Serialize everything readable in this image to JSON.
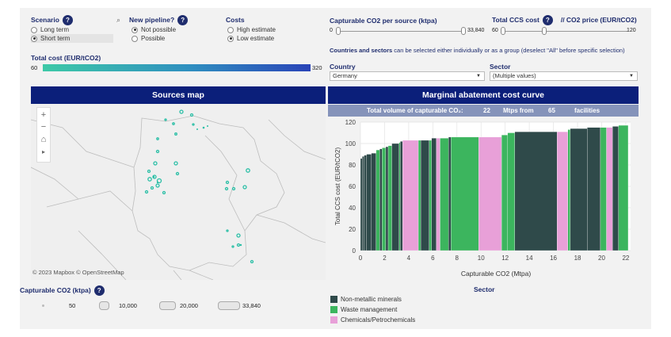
{
  "filters": {
    "scenario": {
      "title": "Scenario",
      "help": "?",
      "options": [
        "Long term",
        "Short term"
      ],
      "selected": 1
    },
    "pipeline": {
      "title": "New pipeline?",
      "help": "?",
      "options": [
        "Not possible",
        "Possible"
      ],
      "selected": 0
    },
    "costs": {
      "title": "Costs",
      "options": [
        "High estimate",
        "Low estimate"
      ],
      "selected": 1
    },
    "search_icon": "search-icon"
  },
  "total_cost": {
    "label": "Total cost (EUR/tCO2)",
    "min": "60",
    "max": "320"
  },
  "capturable_slider": {
    "label": "Capturable CO2 per source (ktpa)",
    "min": "0",
    "max": "33,840"
  },
  "ccs_slider": {
    "label": "Total CCS cost",
    "help": "?",
    "label2": "// CO2 price (EUR/tCO2)",
    "min": "60",
    "max": "120"
  },
  "selection_note": {
    "bold": "Countries and sectors",
    "rest": " can be selected either individually or as a group (deselect \"All\" before specific selection)"
  },
  "country": {
    "label": "Country",
    "value": "Germany"
  },
  "sector_filter": {
    "label": "Sector",
    "value": "(Multiple values)"
  },
  "sources_map": {
    "title": "Sources map",
    "attribution": "© 2023 Mapbox  © OpenStreetMap",
    "controls": [
      "+",
      "−",
      "⌂",
      "▸"
    ]
  },
  "size_legend": {
    "title": "Capturable CO2 (ktpa)",
    "help": "?",
    "values": [
      "50",
      "10,000",
      "20,000",
      "33,840"
    ]
  },
  "macc": {
    "title": "Marginal abatement cost curve",
    "summary": {
      "label": "Total volume of capturable CO₂:",
      "volume": "22",
      "mid": "Mtps from",
      "facilities": "65",
      "end": "facilities"
    }
  },
  "chart_data": {
    "type": "bar",
    "xlabel": "Capturable CO2 (Mtpa)",
    "ylabel": "Total CCS cost (EUR/tCO2)",
    "xlim": [
      0,
      22.4
    ],
    "ylim": [
      0,
      120
    ],
    "xticks": [
      0,
      2,
      4,
      6,
      8,
      10,
      12,
      14,
      16,
      18,
      20,
      22
    ],
    "yticks": [
      0,
      20,
      40,
      60,
      80,
      100,
      120
    ],
    "colors": {
      "Non-metallic minerals": "#2f4a4a",
      "Waste management": "#3cb55e",
      "Chemicals/Petrochemicals": "#e8a0d8"
    },
    "bars": [
      {
        "x0": 0,
        "x1": 0.15,
        "y": 86,
        "sector": "Non-metallic minerals"
      },
      {
        "x0": 0.15,
        "x1": 0.3,
        "y": 88,
        "sector": "Non-metallic minerals"
      },
      {
        "x0": 0.3,
        "x1": 0.5,
        "y": 89,
        "sector": "Non-metallic minerals"
      },
      {
        "x0": 0.5,
        "x1": 0.9,
        "y": 90,
        "sector": "Non-metallic minerals"
      },
      {
        "x0": 0.9,
        "x1": 1.3,
        "y": 91,
        "sector": "Non-metallic minerals"
      },
      {
        "x0": 1.3,
        "x1": 1.6,
        "y": 94,
        "sector": "Waste management"
      },
      {
        "x0": 1.6,
        "x1": 1.8,
        "y": 95,
        "sector": "Non-metallic minerals"
      },
      {
        "x0": 1.8,
        "x1": 2.1,
        "y": 96,
        "sector": "Waste management"
      },
      {
        "x0": 2.1,
        "x1": 2.3,
        "y": 97,
        "sector": "Non-metallic minerals"
      },
      {
        "x0": 2.3,
        "x1": 2.6,
        "y": 98,
        "sector": "Waste management"
      },
      {
        "x0": 2.6,
        "x1": 3.2,
        "y": 100,
        "sector": "Non-metallic minerals"
      },
      {
        "x0": 3.2,
        "x1": 3.3,
        "y": 101,
        "sector": "Waste management"
      },
      {
        "x0": 3.3,
        "x1": 3.5,
        "y": 102,
        "sector": "Non-metallic minerals"
      },
      {
        "x0": 3.5,
        "x1": 4.8,
        "y": 103,
        "sector": "Chemicals/Petrochemicals"
      },
      {
        "x0": 4.8,
        "x1": 5.0,
        "y": 103,
        "sector": "Waste management"
      },
      {
        "x0": 5.0,
        "x1": 5.7,
        "y": 103,
        "sector": "Non-metallic minerals"
      },
      {
        "x0": 5.7,
        "x1": 5.9,
        "y": 103,
        "sector": "Waste management"
      },
      {
        "x0": 5.9,
        "x1": 6.3,
        "y": 105,
        "sector": "Non-metallic minerals"
      },
      {
        "x0": 6.3,
        "x1": 6.6,
        "y": 105,
        "sector": "Chemicals/Petrochemicals"
      },
      {
        "x0": 6.6,
        "x1": 7.3,
        "y": 105,
        "sector": "Waste management"
      },
      {
        "x0": 7.3,
        "x1": 7.5,
        "y": 106,
        "sector": "Non-metallic minerals"
      },
      {
        "x0": 7.5,
        "x1": 9.8,
        "y": 106,
        "sector": "Waste management"
      },
      {
        "x0": 9.8,
        "x1": 11.7,
        "y": 106,
        "sector": "Chemicals/Petrochemicals"
      },
      {
        "x0": 11.7,
        "x1": 12.2,
        "y": 108,
        "sector": "Waste management"
      },
      {
        "x0": 12.2,
        "x1": 12.8,
        "y": 110,
        "sector": "Waste management"
      },
      {
        "x0": 12.8,
        "x1": 16.3,
        "y": 111,
        "sector": "Non-metallic minerals"
      },
      {
        "x0": 16.3,
        "x1": 17.2,
        "y": 111,
        "sector": "Chemicals/Petrochemicals"
      },
      {
        "x0": 17.2,
        "x1": 17.4,
        "y": 113,
        "sector": "Waste management"
      },
      {
        "x0": 17.4,
        "x1": 18.8,
        "y": 114,
        "sector": "Non-metallic minerals"
      },
      {
        "x0": 18.8,
        "x1": 19.9,
        "y": 115,
        "sector": "Non-metallic minerals"
      },
      {
        "x0": 19.9,
        "x1": 20.4,
        "y": 115,
        "sector": "Waste management"
      },
      {
        "x0": 20.4,
        "x1": 20.9,
        "y": 115,
        "sector": "Chemicals/Petrochemicals"
      },
      {
        "x0": 20.9,
        "x1": 21.4,
        "y": 116,
        "sector": "Non-metallic minerals"
      },
      {
        "x0": 21.4,
        "x1": 22.2,
        "y": 117,
        "sector": "Waste management"
      }
    ]
  },
  "sector_legend": {
    "title": "Sector",
    "items": [
      {
        "label": "Non-metallic minerals",
        "color": "#2f4a4a"
      },
      {
        "label": "Waste management",
        "color": "#3cb55e"
      },
      {
        "label": "Chemicals/Petrochemicals",
        "color": "#e8a0d8"
      }
    ]
  }
}
